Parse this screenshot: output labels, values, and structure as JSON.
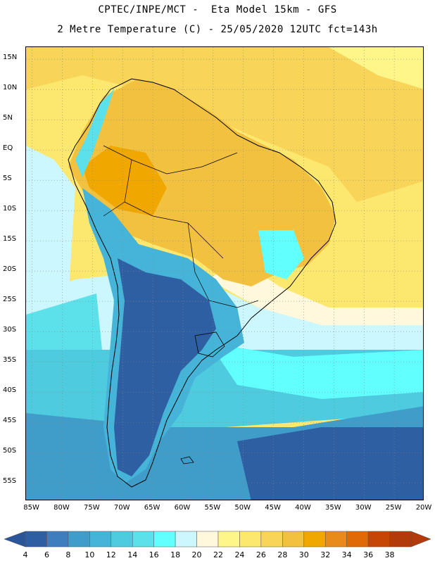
{
  "header": {
    "line1": "CPTEC/INPE/MCT -  Eta Model 15km - GFS",
    "line2": "2 Metre Temperature (C) - 25/05/2020 12UTC fct=143h"
  },
  "map": {
    "lat_labels": [
      "15N",
      "10N",
      "5N",
      "EQ",
      "5S",
      "10S",
      "15S",
      "20S",
      "25S",
      "30S",
      "35S",
      "40S",
      "45S",
      "50S",
      "55S"
    ],
    "lon_labels": [
      "85W",
      "80W",
      "75W",
      "70W",
      "65W",
      "60W",
      "55W",
      "50W",
      "45W",
      "40W",
      "35W",
      "30W",
      "25W",
      "20W"
    ],
    "lat_range": [
      -58,
      17
    ],
    "lon_range": [
      -86,
      -20
    ]
  },
  "colorbar": {
    "labels": [
      "4",
      "6",
      "8",
      "10",
      "12",
      "14",
      "16",
      "18",
      "20",
      "22",
      "24",
      "26",
      "28",
      "30",
      "32",
      "34",
      "36",
      "38"
    ],
    "colors": [
      "#2e5fa3",
      "#3e7dbe",
      "#409dca",
      "#45b4d8",
      "#4fcbe0",
      "#5ce0ea",
      "#62ffff",
      "#ccf7ff",
      "#fff8dc",
      "#fff68a",
      "#fde86f",
      "#f8d458",
      "#f2c13f",
      "#f0a800",
      "#e98b1b",
      "#e06a08",
      "#c64605",
      "#b33a0a"
    ],
    "under_color": "#2a5599",
    "over_color": "#b33a0a"
  }
}
